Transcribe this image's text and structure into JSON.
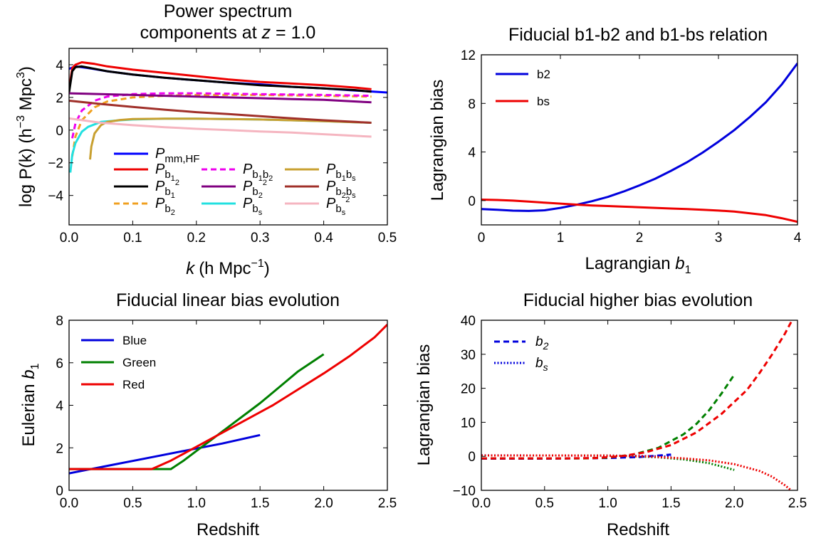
{
  "chart_data": [
    {
      "type": "line",
      "title_lines": [
        "Power spectrum",
        "components at z = 1.0"
      ],
      "title_prefix": "components at ",
      "title_var": "z",
      "title_suffix": " = 1.0",
      "xlabel_var": "k",
      "xlabel_rest": "(h Mpc",
      "xlabel_sup": "−1",
      "xlabel_close": ")",
      "ylabel_text": "log P(k) (h",
      "ylabel_sup": "−3",
      "ylabel_mid": " Mpc",
      "ylabel_sup2": "3",
      "ylabel_close": ")",
      "xlim": [
        0.0,
        0.5
      ],
      "ylim": [
        -5.8,
        5.0
      ],
      "xticks": [
        0.0,
        0.1,
        0.2,
        0.3,
        0.4,
        0.5
      ],
      "xtick_labels": [
        "0.0",
        "0.1",
        "0.2",
        "0.3",
        "0.4",
        "0.5"
      ],
      "yticks": [
        -4,
        -2,
        0,
        2,
        4
      ],
      "ytick_labels": [
        "−4",
        "−2",
        "0",
        "2",
        "4"
      ],
      "legend_placement": "lower-center",
      "series": [
        {
          "name": "P_mm,HF",
          "label_main": "P",
          "label_sub": "mm,HF",
          "color": "#0000ff",
          "dash": "solid",
          "x": [
            0.0,
            0.01,
            0.03,
            0.06,
            0.1,
            0.15,
            0.2,
            0.25,
            0.3,
            0.35,
            0.4,
            0.45,
            0.5
          ],
          "y": [
            3.75,
            3.9,
            3.8,
            3.6,
            3.4,
            3.2,
            3.05,
            2.9,
            2.8,
            2.65,
            2.55,
            2.42,
            2.3
          ]
        },
        {
          "name": "P_b1",
          "label_main": "P",
          "label_sub": "b",
          "label_sub2": "1",
          "color": "#ee0000",
          "dash": "solid",
          "x": [
            0.0,
            0.005,
            0.01,
            0.02,
            0.04,
            0.06,
            0.1,
            0.15,
            0.2,
            0.25,
            0.3,
            0.35,
            0.4,
            0.45,
            0.475
          ],
          "y": [
            2.5,
            3.8,
            4.0,
            4.15,
            4.05,
            3.9,
            3.7,
            3.5,
            3.3,
            3.1,
            2.95,
            2.85,
            2.75,
            2.6,
            2.5
          ]
        },
        {
          "name": "P_b1^2",
          "label_main": "P",
          "label_sub": "b",
          "label_sub2": "1",
          "label_sup": "2",
          "color": "#000000",
          "dash": "solid",
          "x": [
            0.0,
            0.005,
            0.01,
            0.02,
            0.04,
            0.06,
            0.1,
            0.15,
            0.2,
            0.25,
            0.3,
            0.35,
            0.4,
            0.45,
            0.475
          ],
          "y": [
            2.3,
            3.6,
            3.85,
            3.9,
            3.75,
            3.6,
            3.4,
            3.2,
            3.05,
            2.9,
            2.75,
            2.65,
            2.55,
            2.45,
            2.35
          ]
        },
        {
          "name": "P_b2",
          "label_main": "P",
          "label_sub": "b",
          "label_sub2": "2",
          "color": "#f0a020",
          "dash": "dash",
          "x": [
            0.005,
            0.01,
            0.02,
            0.04,
            0.06,
            0.1,
            0.15,
            0.2,
            0.3,
            0.4,
            0.475
          ],
          "y": [
            -1.6,
            -0.4,
            0.6,
            1.4,
            1.75,
            2.0,
            2.1,
            2.15,
            2.15,
            2.1,
            2.05
          ]
        },
        {
          "name": "P_b1b2",
          "label_main": "P",
          "label_sub": "b",
          "label_sub2": "1",
          "label_sub3": "b",
          "label_sub4": "2",
          "color": "#ee00ee",
          "dash": "dash",
          "x": [
            0.005,
            0.01,
            0.02,
            0.04,
            0.06,
            0.1,
            0.15,
            0.2,
            0.3,
            0.4,
            0.475
          ],
          "y": [
            -0.5,
            0.4,
            1.2,
            1.8,
            2.05,
            2.2,
            2.25,
            2.25,
            2.2,
            2.15,
            2.1
          ]
        },
        {
          "name": "P_b2^2",
          "label_main": "P",
          "label_sub": "b",
          "label_sub2": "2",
          "label_sup": "2",
          "color": "#800080",
          "dash": "solid",
          "x": [
            0.0,
            0.05,
            0.1,
            0.15,
            0.2,
            0.25,
            0.3,
            0.35,
            0.4,
            0.45,
            0.475
          ],
          "y": [
            2.25,
            2.2,
            2.15,
            2.1,
            2.05,
            2.0,
            1.95,
            1.9,
            1.85,
            1.75,
            1.7
          ]
        },
        {
          "name": "P_bs",
          "label_main": "P",
          "label_sub": "b",
          "label_sub2": "s",
          "color": "#22e0e0",
          "dash": "solid",
          "x": [
            0.002,
            0.005,
            0.01,
            0.02,
            0.03,
            0.05,
            0.08,
            0.1,
            0.15,
            0.2,
            0.3,
            0.4,
            0.475
          ],
          "y": [
            -2.6,
            -1.5,
            -0.8,
            -0.1,
            0.2,
            0.5,
            0.6,
            0.65,
            0.7,
            0.7,
            0.65,
            0.55,
            0.45
          ]
        },
        {
          "name": "P_b1bs",
          "label_main": "P",
          "label_sub": "b",
          "label_sub2": "1",
          "label_sub3": "b",
          "label_sub4": "s",
          "color": "#c8a030",
          "dash": "solid",
          "x": [
            0.033,
            0.035,
            0.04,
            0.05,
            0.06,
            0.08,
            0.1,
            0.15,
            0.2,
            0.3,
            0.4,
            0.475
          ],
          "y": [
            -1.8,
            -1.0,
            -0.2,
            0.3,
            0.5,
            0.62,
            0.68,
            0.7,
            0.7,
            0.65,
            0.55,
            0.45
          ]
        },
        {
          "name": "P_b2bs",
          "label_main": "P",
          "label_sub": "b",
          "label_sub2": "2",
          "label_sub3": "b",
          "label_sub4": "s",
          "color": "#a0302a",
          "dash": "solid",
          "x": [
            0.0,
            0.05,
            0.1,
            0.15,
            0.2,
            0.25,
            0.3,
            0.35,
            0.4,
            0.45,
            0.475
          ],
          "y": [
            1.8,
            1.6,
            1.42,
            1.25,
            1.1,
            0.98,
            0.85,
            0.72,
            0.6,
            0.5,
            0.45
          ]
        },
        {
          "name": "P_bs^2",
          "label_main": "P",
          "label_sub": "b",
          "label_sub2": "s",
          "label_sup": "2",
          "color": "#f5b5c0",
          "dash": "solid",
          "x": [
            0.0,
            0.05,
            0.1,
            0.15,
            0.2,
            0.25,
            0.3,
            0.35,
            0.4,
            0.45,
            0.475
          ],
          "y": [
            0.72,
            0.45,
            0.3,
            0.18,
            0.08,
            0.0,
            -0.08,
            -0.15,
            -0.25,
            -0.35,
            -0.4
          ]
        }
      ]
    },
    {
      "type": "line",
      "title": "Fiducial b1-b2 and b1-bs relation",
      "xlabel_text": "Lagrangian ",
      "xlabel_var": "b",
      "xlabel_sub": "1",
      "ylabel": "Lagrangian bias",
      "xlim": [
        0,
        4
      ],
      "ylim": [
        -2,
        12
      ],
      "xticks": [
        0,
        1,
        2,
        3,
        4
      ],
      "xtick_labels": [
        "0",
        "1",
        "2",
        "3",
        "4"
      ],
      "yticks": [
        0,
        4,
        8,
        12
      ],
      "ytick_labels": [
        "0",
        "4",
        "8",
        "12"
      ],
      "legend_placement": "top-left",
      "series": [
        {
          "name": "b2",
          "color": "#0000dd",
          "dash": "solid",
          "x": [
            0.0,
            0.2,
            0.4,
            0.6,
            0.8,
            1.0,
            1.2,
            1.4,
            1.6,
            1.8,
            2.0,
            2.2,
            2.4,
            2.6,
            2.8,
            3.0,
            3.2,
            3.4,
            3.6,
            3.8,
            4.0
          ],
          "y": [
            -0.7,
            -0.75,
            -0.83,
            -0.85,
            -0.8,
            -0.6,
            -0.35,
            -0.05,
            0.3,
            0.75,
            1.25,
            1.8,
            2.45,
            3.15,
            3.95,
            4.85,
            5.8,
            6.9,
            8.1,
            9.55,
            11.3
          ]
        },
        {
          "name": "bs",
          "color": "#ee0000",
          "dash": "solid",
          "x": [
            0.0,
            0.2,
            0.4,
            0.6,
            0.8,
            1.0,
            1.2,
            1.4,
            1.6,
            1.8,
            2.0,
            2.2,
            2.4,
            2.6,
            2.8,
            3.0,
            3.2,
            3.4,
            3.6,
            3.8,
            4.0
          ],
          "y": [
            0.08,
            0.05,
            0.0,
            -0.08,
            -0.17,
            -0.25,
            -0.33,
            -0.4,
            -0.45,
            -0.5,
            -0.55,
            -0.6,
            -0.65,
            -0.7,
            -0.75,
            -0.82,
            -0.9,
            -1.05,
            -1.2,
            -1.45,
            -1.75
          ]
        }
      ]
    },
    {
      "type": "line",
      "title": "Fiducial linear bias evolution",
      "xlabel": "Redshift",
      "ylabel_text": "Eulerian ",
      "ylabel_var": "b",
      "ylabel_sub": "1",
      "xlim": [
        0.0,
        2.5
      ],
      "ylim": [
        0,
        8
      ],
      "xticks": [
        0.0,
        0.5,
        1.0,
        1.5,
        2.0,
        2.5
      ],
      "xtick_labels": [
        "0.0",
        "0.5",
        "1.0",
        "1.5",
        "2.0",
        "2.5"
      ],
      "yticks": [
        0,
        2,
        4,
        6,
        8
      ],
      "ytick_labels": [
        "0",
        "2",
        "4",
        "6",
        "8"
      ],
      "legend_placement": "top-left",
      "series": [
        {
          "name": "Blue",
          "color": "#0000dd",
          "dash": "solid",
          "x": [
            0.0,
            0.3,
            0.6,
            0.9,
            1.2,
            1.5
          ],
          "y": [
            0.8,
            1.15,
            1.5,
            1.85,
            2.2,
            2.6
          ]
        },
        {
          "name": "Green",
          "color": "#008000",
          "dash": "solid",
          "x": [
            0.0,
            0.5,
            0.8,
            0.9,
            1.0,
            1.1,
            1.2,
            1.3,
            1.4,
            1.5,
            1.6,
            1.7,
            1.8,
            1.9,
            2.0
          ],
          "y": [
            1.0,
            1.0,
            1.0,
            1.4,
            1.85,
            2.3,
            2.75,
            3.2,
            3.65,
            4.1,
            4.6,
            5.1,
            5.6,
            6.0,
            6.4
          ]
        },
        {
          "name": "Red",
          "color": "#ee0000",
          "dash": "solid",
          "x": [
            0.0,
            0.4,
            0.65,
            0.8,
            1.0,
            1.2,
            1.4,
            1.6,
            1.8,
            2.0,
            2.2,
            2.4,
            2.5
          ],
          "y": [
            1.0,
            1.0,
            1.0,
            1.4,
            2.05,
            2.7,
            3.35,
            4.0,
            4.75,
            5.5,
            6.3,
            7.2,
            7.8
          ]
        }
      ]
    },
    {
      "type": "line",
      "title": "Fiducial higher bias evolution",
      "xlabel": "Redshift",
      "ylabel": "Lagrangian bias",
      "xlim": [
        0.0,
        2.5
      ],
      "ylim": [
        -10,
        40
      ],
      "xticks": [
        0.0,
        0.5,
        1.0,
        1.5,
        2.0,
        2.5
      ],
      "xtick_labels": [
        "0.0",
        "0.5",
        "1.0",
        "1.5",
        "2.0",
        "2.5"
      ],
      "yticks": [
        -10,
        0,
        10,
        20,
        30,
        40
      ],
      "ytick_labels": [
        "−10",
        "0",
        "10",
        "20",
        "30",
        "40"
      ],
      "legend_placement": "top-left",
      "legend": [
        {
          "name": "b2",
          "label_main": "b",
          "label_sub": "2",
          "color": "#0000dd",
          "dash": "dash"
        },
        {
          "name": "bs",
          "label_main": "b",
          "label_sub": "s",
          "color": "#0000dd",
          "dash": "dot"
        }
      ],
      "series": [
        {
          "name": "b2 Blue",
          "color": "#0000dd",
          "dash": "dash",
          "x": [
            0.0,
            0.5,
            1.0,
            1.25,
            1.5
          ],
          "y": [
            -0.7,
            -0.7,
            -0.5,
            -0.2,
            0.5
          ]
        },
        {
          "name": "b2 Green",
          "color": "#008000",
          "dash": "dash",
          "x": [
            0.0,
            0.5,
            0.8,
            1.0,
            1.2,
            1.4,
            1.6,
            1.7,
            1.8,
            1.9,
            2.0
          ],
          "y": [
            -0.6,
            -0.6,
            -0.6,
            -0.4,
            0.5,
            2.5,
            6.5,
            9.5,
            13.5,
            18.5,
            24.0
          ]
        },
        {
          "name": "b2 Red",
          "color": "#ee0000",
          "dash": "dash",
          "x": [
            0.0,
            0.5,
            0.65,
            0.9,
            1.1,
            1.3,
            1.5,
            1.7,
            1.9,
            2.1,
            2.2,
            2.3,
            2.4,
            2.45
          ],
          "y": [
            -0.6,
            -0.6,
            -0.6,
            -0.5,
            0.0,
            1.2,
            3.3,
            7.0,
            12.5,
            19.5,
            24.5,
            30.0,
            36.0,
            39.5
          ]
        },
        {
          "name": "bs Blue",
          "color": "#0000dd",
          "dash": "dot",
          "x": [
            0.0,
            0.5,
            1.0,
            1.25,
            1.5
          ],
          "y": [
            0.3,
            0.25,
            0.2,
            0.1,
            -0.1
          ]
        },
        {
          "name": "bs Green",
          "color": "#008000",
          "dash": "dot",
          "x": [
            0.0,
            0.5,
            0.8,
            1.0,
            1.2,
            1.4,
            1.6,
            1.8,
            2.0
          ],
          "y": [
            0.25,
            0.25,
            0.25,
            0.2,
            0.05,
            -0.3,
            -0.9,
            -2.0,
            -4.0
          ]
        },
        {
          "name": "bs Red",
          "color": "#ee0000",
          "dash": "dot",
          "x": [
            0.0,
            0.5,
            0.65,
            1.0,
            1.3,
            1.6,
            1.8,
            2.0,
            2.2,
            2.3,
            2.4,
            2.45
          ],
          "y": [
            0.25,
            0.25,
            0.25,
            0.2,
            0.0,
            -0.6,
            -1.2,
            -2.3,
            -4.3,
            -6.0,
            -8.5,
            -10.0
          ]
        }
      ]
    }
  ]
}
